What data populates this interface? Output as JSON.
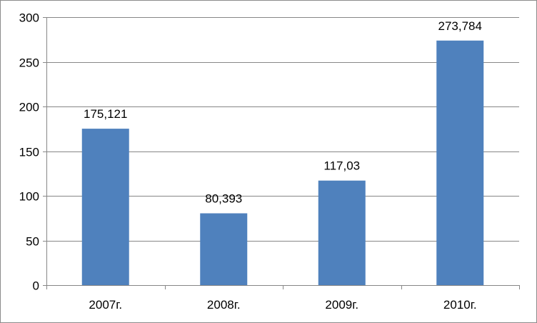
{
  "chart_data": {
    "type": "bar",
    "categories": [
      "2007г.",
      "2008г.",
      "2009г.",
      "2010г."
    ],
    "values": [
      175.121,
      80.393,
      117.03,
      273.784
    ],
    "data_labels": [
      "175,121",
      "80,393",
      "117,03",
      "273,784"
    ],
    "title": "",
    "xlabel": "",
    "ylabel": "",
    "ylim": [
      0,
      300
    ],
    "yticks": [
      0,
      50,
      100,
      150,
      200,
      250,
      300
    ],
    "ytick_labels": [
      "0",
      "50",
      "100",
      "150",
      "200",
      "250",
      "300"
    ],
    "grid": true,
    "legend": "none",
    "colors": {
      "bar": "#4f81bd",
      "grid": "#878787",
      "axis": "#878787"
    }
  }
}
